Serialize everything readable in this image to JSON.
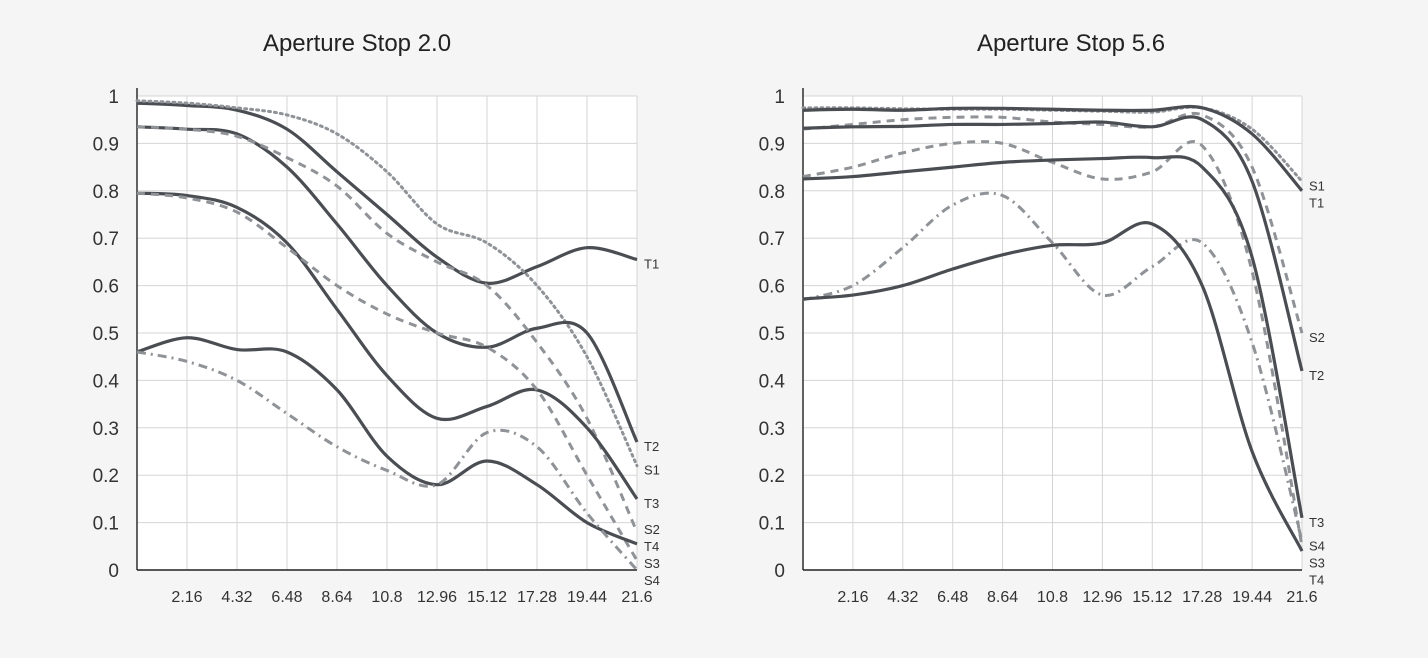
{
  "chart_data": [
    {
      "type": "line",
      "title": "Aperture Stop 2.0",
      "xlabel": "",
      "ylabel": "",
      "xlim": [
        0,
        21.6
      ],
      "ylim": [
        0,
        1
      ],
      "xticks": [
        "2.16",
        "4.32",
        "6.48",
        "8.64",
        "10.8",
        "12.96",
        "15.12",
        "17.28",
        "19.44",
        "21.6"
      ],
      "yticks": [
        "0",
        "0.1",
        "0.2",
        "0.3",
        "0.4",
        "0.5",
        "0.6",
        "0.7",
        "0.8",
        "0.9",
        "1"
      ],
      "grid": true,
      "series": [
        {
          "name": "T1",
          "style": "solid",
          "color": "#4a4d52",
          "x": [
            0,
            2.16,
            4.32,
            6.48,
            8.64,
            10.8,
            12.96,
            15.12,
            17.28,
            19.44,
            21.6
          ],
          "y": [
            0.985,
            0.98,
            0.97,
            0.93,
            0.84,
            0.75,
            0.66,
            0.605,
            0.64,
            0.68,
            0.655
          ]
        },
        {
          "name": "S1",
          "style": "dotted",
          "color": "#8f9296",
          "x": [
            0,
            2.16,
            4.32,
            6.48,
            8.64,
            10.8,
            12.96,
            15.12,
            17.28,
            19.44,
            21.6
          ],
          "y": [
            0.99,
            0.985,
            0.975,
            0.96,
            0.92,
            0.84,
            0.73,
            0.69,
            0.6,
            0.45,
            0.22
          ]
        },
        {
          "name": "T2",
          "style": "solid",
          "color": "#4a4d52",
          "x": [
            0,
            2.16,
            4.32,
            6.48,
            8.64,
            10.8,
            12.96,
            15.12,
            17.28,
            19.44,
            21.6
          ],
          "y": [
            0.935,
            0.93,
            0.92,
            0.85,
            0.73,
            0.6,
            0.5,
            0.47,
            0.51,
            0.5,
            0.27
          ]
        },
        {
          "name": "S2",
          "style": "dashed",
          "color": "#8f9296",
          "x": [
            0,
            2.16,
            4.32,
            6.48,
            8.64,
            10.8,
            12.96,
            15.12,
            17.28,
            19.44,
            21.6
          ],
          "y": [
            0.935,
            0.93,
            0.915,
            0.87,
            0.81,
            0.71,
            0.65,
            0.6,
            0.48,
            0.32,
            0.08
          ]
        },
        {
          "name": "T3",
          "style": "solid",
          "color": "#4a4d52",
          "x": [
            0,
            2.16,
            4.32,
            6.48,
            8.64,
            10.8,
            12.96,
            15.12,
            17.28,
            19.44,
            21.6
          ],
          "y": [
            0.795,
            0.79,
            0.765,
            0.69,
            0.55,
            0.41,
            0.32,
            0.345,
            0.38,
            0.3,
            0.15
          ]
        },
        {
          "name": "S3",
          "style": "dashed",
          "color": "#8f9296",
          "x": [
            0,
            2.16,
            4.32,
            6.48,
            8.64,
            10.8,
            12.96,
            15.12,
            17.28,
            19.44,
            21.6
          ],
          "y": [
            0.795,
            0.785,
            0.755,
            0.68,
            0.6,
            0.54,
            0.5,
            0.47,
            0.38,
            0.2,
            0.02
          ]
        },
        {
          "name": "T4",
          "style": "solid",
          "color": "#4a4d52",
          "x": [
            0,
            2.16,
            4.32,
            6.48,
            8.64,
            10.8,
            12.96,
            15.12,
            17.28,
            19.44,
            21.6
          ],
          "y": [
            0.46,
            0.49,
            0.465,
            0.46,
            0.38,
            0.24,
            0.18,
            0.23,
            0.18,
            0.1,
            0.055
          ]
        },
        {
          "name": "S4",
          "style": "dashdot",
          "color": "#8f9296",
          "x": [
            0,
            2.16,
            4.32,
            6.48,
            8.64,
            10.8,
            12.96,
            15.12,
            17.28,
            19.44,
            21.6
          ],
          "y": [
            0.46,
            0.44,
            0.4,
            0.33,
            0.26,
            0.21,
            0.18,
            0.29,
            0.26,
            0.12,
            0.0
          ]
        }
      ]
    },
    {
      "type": "line",
      "title": "Aperture Stop 5.6",
      "xlabel": "",
      "ylabel": "",
      "xlim": [
        0,
        21.6
      ],
      "ylim": [
        0,
        1
      ],
      "xticks": [
        "2.16",
        "4.32",
        "6.48",
        "8.64",
        "10.8",
        "12.96",
        "15.12",
        "17.28",
        "19.44",
        "21.6"
      ],
      "yticks": [
        "0",
        "0.1",
        "0.2",
        "0.3",
        "0.4",
        "0.5",
        "0.6",
        "0.7",
        "0.8",
        "0.9",
        "1"
      ],
      "grid": true,
      "series": [
        {
          "name": "S1",
          "style": "dotted",
          "color": "#8f9296",
          "x": [
            0,
            2.16,
            4.32,
            6.48,
            8.64,
            10.8,
            12.96,
            15.12,
            17.28,
            19.44,
            21.6
          ],
          "y": [
            0.975,
            0.975,
            0.973,
            0.972,
            0.972,
            0.97,
            0.968,
            0.966,
            0.975,
            0.93,
            0.82
          ]
        },
        {
          "name": "T1",
          "style": "solid",
          "color": "#4a4d52",
          "x": [
            0,
            2.16,
            4.32,
            6.48,
            8.64,
            10.8,
            12.96,
            15.12,
            17.28,
            19.44,
            21.6
          ],
          "y": [
            0.97,
            0.972,
            0.97,
            0.974,
            0.974,
            0.972,
            0.97,
            0.97,
            0.975,
            0.92,
            0.8
          ]
        },
        {
          "name": "S2",
          "style": "dashed",
          "color": "#8f9296",
          "x": [
            0,
            2.16,
            4.32,
            6.48,
            8.64,
            10.8,
            12.96,
            15.12,
            17.28,
            19.44,
            21.6
          ],
          "y": [
            0.93,
            0.94,
            0.95,
            0.955,
            0.955,
            0.945,
            0.94,
            0.935,
            0.96,
            0.85,
            0.5
          ]
        },
        {
          "name": "T2",
          "style": "solid",
          "color": "#4a4d52",
          "x": [
            0,
            2.16,
            4.32,
            6.48,
            8.64,
            10.8,
            12.96,
            15.12,
            17.28,
            19.44,
            21.6
          ],
          "y": [
            0.932,
            0.935,
            0.936,
            0.94,
            0.94,
            0.942,
            0.945,
            0.935,
            0.95,
            0.82,
            0.42
          ]
        },
        {
          "name": "S3",
          "style": "dashed",
          "color": "#8f9296",
          "x": [
            0,
            2.16,
            4.32,
            6.48,
            8.64,
            10.8,
            12.96,
            15.12,
            17.28,
            19.44,
            21.6
          ],
          "y": [
            0.83,
            0.85,
            0.88,
            0.9,
            0.9,
            0.86,
            0.825,
            0.84,
            0.895,
            0.63,
            0.05
          ]
        },
        {
          "name": "T3",
          "style": "solid",
          "color": "#4a4d52",
          "x": [
            0,
            2.16,
            4.32,
            6.48,
            8.64,
            10.8,
            12.96,
            15.12,
            17.28,
            19.44,
            21.6
          ],
          "y": [
            0.825,
            0.83,
            0.84,
            0.85,
            0.86,
            0.865,
            0.868,
            0.87,
            0.85,
            0.66,
            0.11
          ]
        },
        {
          "name": "S4",
          "style": "dashdot",
          "color": "#8f9296",
          "x": [
            0,
            2.16,
            4.32,
            6.48,
            8.64,
            10.8,
            12.96,
            15.12,
            17.28,
            19.44,
            21.6
          ],
          "y": [
            0.57,
            0.6,
            0.68,
            0.77,
            0.79,
            0.69,
            0.58,
            0.64,
            0.69,
            0.48,
            0.06
          ]
        },
        {
          "name": "T4",
          "style": "solid",
          "color": "#4a4d52",
          "x": [
            0,
            2.16,
            4.32,
            6.48,
            8.64,
            10.8,
            12.96,
            15.12,
            17.28,
            19.44,
            21.6
          ],
          "y": [
            0.572,
            0.58,
            0.6,
            0.635,
            0.665,
            0.685,
            0.69,
            0.73,
            0.6,
            0.25,
            0.04
          ]
        }
      ]
    }
  ]
}
